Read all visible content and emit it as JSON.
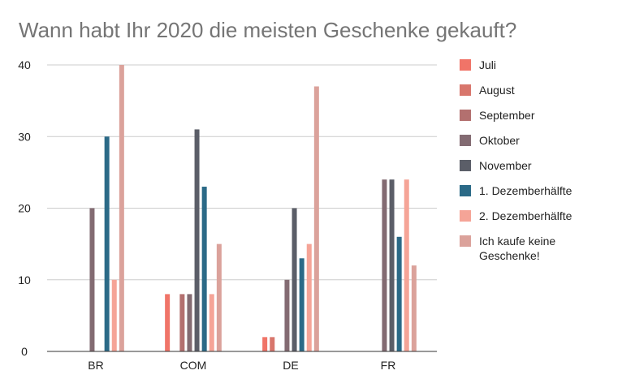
{
  "chart_data": {
    "type": "bar",
    "title": "Wann habt Ihr 2020 die meisten Geschenke gekauft?",
    "xlabel": "",
    "ylabel": "",
    "categories": [
      "BR",
      "COM",
      "DE",
      "FR"
    ],
    "ylim": [
      0,
      40
    ],
    "yticks": [
      0,
      10,
      20,
      30,
      40
    ],
    "grid": true,
    "legend_position": "right",
    "series": [
      {
        "name": "Juli",
        "color": "#f07468",
        "values": [
          0,
          8,
          2,
          0
        ]
      },
      {
        "name": "August",
        "color": "#d8766c",
        "values": [
          0,
          0,
          2,
          0
        ]
      },
      {
        "name": "September",
        "color": "#b3706f",
        "values": [
          0,
          8,
          0,
          0
        ]
      },
      {
        "name": "Oktober",
        "color": "#836b72",
        "values": [
          20,
          8,
          10,
          24
        ]
      },
      {
        "name": "November",
        "color": "#5b5e68",
        "values": [
          0,
          31,
          20,
          24
        ]
      },
      {
        "name": "1. Dezemberhälfte",
        "color": "#2b6a87",
        "values": [
          30,
          23,
          13,
          16
        ]
      },
      {
        "name": "2. Dezemberhälfte",
        "color": "#f5a497",
        "values": [
          10,
          8,
          15,
          24
        ]
      },
      {
        "name": "Ich kaufe keine Geschenke!",
        "color": "#dba29b",
        "values": [
          40,
          15,
          37,
          12
        ]
      }
    ]
  }
}
